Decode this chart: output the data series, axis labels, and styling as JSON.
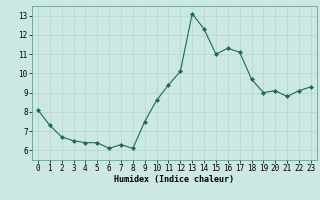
{
  "x": [
    0,
    1,
    2,
    3,
    4,
    5,
    6,
    7,
    8,
    9,
    10,
    11,
    12,
    13,
    14,
    15,
    16,
    17,
    18,
    19,
    20,
    21,
    22,
    23
  ],
  "y": [
    8.1,
    7.3,
    6.7,
    6.5,
    6.4,
    6.4,
    6.1,
    6.3,
    6.1,
    7.5,
    8.6,
    9.4,
    10.1,
    13.1,
    12.3,
    11.0,
    11.3,
    11.1,
    9.7,
    9.0,
    9.1,
    8.8,
    9.1,
    9.3
  ],
  "line_color": "#1a6b5a",
  "marker_color": "#1a6b5a",
  "bg_color": "#cce8e2",
  "grid_color": "#b8d4cf",
  "grid_color2": "#c8dbd7",
  "xlabel": "Humidex (Indice chaleur)",
  "xlim": [
    -0.5,
    23.5
  ],
  "ylim": [
    5.5,
    13.5
  ],
  "yticks": [
    6,
    7,
    8,
    9,
    10,
    11,
    12,
    13
  ],
  "xticks": [
    0,
    1,
    2,
    3,
    4,
    5,
    6,
    7,
    8,
    9,
    10,
    11,
    12,
    13,
    14,
    15,
    16,
    17,
    18,
    19,
    20,
    21,
    22,
    23
  ],
  "xlabel_fontsize": 6.0,
  "tick_fontsize": 5.5,
  "linewidth": 0.8,
  "markersize": 2.0
}
